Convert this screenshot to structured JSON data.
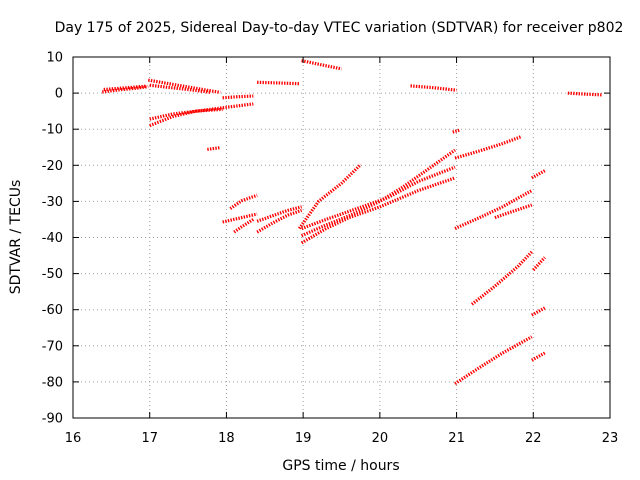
{
  "chart_data": {
    "type": "scatter",
    "title": "Day 175 of 2025, Sidereal Day-to-day VTEC variation (SDTVAR) for receiver p802",
    "xlabel": "GPS time / hours",
    "ylabel": "SDTVAR / TECUs",
    "xlim": [
      16,
      23
    ],
    "ylim": [
      -90,
      10
    ],
    "xticks": [
      "16",
      "17",
      "18",
      "19",
      "20",
      "21",
      "22",
      "23"
    ],
    "yticks": [
      "10",
      "0",
      "-10",
      "-20",
      "-30",
      "-40",
      "-50",
      "-60",
      "-70",
      "-80",
      "-90"
    ],
    "grid": true,
    "marker": "plus",
    "color": "#ff0000",
    "series": [
      {
        "x": [
          16.38,
          16.6,
          16.85,
          16.98
        ],
        "y": [
          0.3,
          0.9,
          1.4,
          1.8
        ]
      },
      {
        "x": [
          16.4,
          16.7,
          16.95
        ],
        "y": [
          1.0,
          1.5,
          1.9
        ]
      },
      {
        "x": [
          16.98,
          17.2,
          17.5,
          17.8,
          17.92
        ],
        "y": [
          3.6,
          2.8,
          1.7,
          0.6,
          0.2
        ]
      },
      {
        "x": [
          17.0,
          17.2,
          17.5,
          17.8
        ],
        "y": [
          2.2,
          1.7,
          1.0,
          0.2
        ]
      },
      {
        "x": [
          17.75,
          17.92
        ],
        "y": [
          -15.6,
          -15.1
        ]
      },
      {
        "x": [
          17.0,
          17.3,
          17.6,
          17.9,
          18.35
        ],
        "y": [
          -9.0,
          -6.5,
          -5.0,
          -4.2,
          -3.0
        ]
      },
      {
        "x": [
          17.0,
          17.3,
          17.6,
          17.95
        ],
        "y": [
          -7.2,
          -5.8,
          -5.0,
          -4.5
        ]
      },
      {
        "x": [
          17.95,
          18.15,
          18.35
        ],
        "y": [
          -1.3,
          -1.0,
          -0.8
        ]
      },
      {
        "x": [
          18.4,
          18.7,
          18.95
        ],
        "y": [
          3.0,
          2.8,
          2.6
        ]
      },
      {
        "x": [
          18.98,
          19.2,
          19.5
        ],
        "y": [
          9.0,
          8.0,
          6.7
        ]
      },
      {
        "x": [
          20.4,
          20.7,
          21.0
        ],
        "y": [
          2.0,
          1.5,
          0.8
        ]
      },
      {
        "x": [
          22.45,
          22.7,
          22.9
        ],
        "y": [
          0.0,
          -0.3,
          -0.5
        ]
      },
      {
        "x": [
          17.95,
          18.2,
          18.4
        ],
        "y": [
          -35.7,
          -34.5,
          -33.5
        ]
      },
      {
        "x": [
          18.05,
          18.2,
          18.4
        ],
        "y": [
          -32.0,
          -29.8,
          -28.3
        ]
      },
      {
        "x": [
          18.1,
          18.2,
          18.35
        ],
        "y": [
          -38.5,
          -37.0,
          -35.0
        ]
      },
      {
        "x": [
          18.4,
          18.6,
          18.8,
          18.98
        ],
        "y": [
          -35.5,
          -34.0,
          -32.5,
          -31.5
        ]
      },
      {
        "x": [
          18.4,
          18.6,
          18.8,
          18.98
        ],
        "y": [
          -38.5,
          -36.0,
          -33.8,
          -32.5
        ]
      },
      {
        "x": [
          18.95,
          19.2,
          19.5,
          19.75
        ],
        "y": [
          -37.5,
          -30.0,
          -25.0,
          -19.8
        ]
      },
      {
        "x": [
          18.98,
          19.3,
          19.6,
          20.0,
          20.5,
          20.98
        ],
        "y": [
          -41.5,
          -37.5,
          -34.5,
          -31.5,
          -27.0,
          -23.5
        ]
      },
      {
        "x": [
          18.98,
          19.3,
          19.7,
          20.1,
          20.5,
          20.98
        ],
        "y": [
          -37.5,
          -35.0,
          -32.0,
          -29.0,
          -24.5,
          -20.5
        ]
      },
      {
        "x": [
          18.98,
          19.3,
          19.6,
          20.0,
          20.3,
          20.6,
          20.98
        ],
        "y": [
          -39.5,
          -36.5,
          -34.0,
          -30.0,
          -26.0,
          -21.5,
          -15.8
        ]
      },
      {
        "x": [
          20.95,
          21.05
        ],
        "y": [
          -10.8,
          -10.2
        ]
      },
      {
        "x": [
          20.98,
          21.3,
          21.6,
          21.85
        ],
        "y": [
          -18.0,
          -16.0,
          -14.0,
          -12.0
        ]
      },
      {
        "x": [
          20.98,
          21.3,
          21.6,
          21.85,
          21.98
        ],
        "y": [
          -37.5,
          -34.5,
          -31.5,
          -28.5,
          -27.0
        ]
      },
      {
        "x": [
          21.5,
          21.7,
          21.98
        ],
        "y": [
          -34.5,
          -33.0,
          -31.0
        ]
      },
      {
        "x": [
          21.98,
          22.15
        ],
        "y": [
          -23.5,
          -21.5
        ]
      },
      {
        "x": [
          21.2,
          21.5,
          21.8,
          21.98
        ],
        "y": [
          -58.5,
          -53.5,
          -48.0,
          -44.0
        ]
      },
      {
        "x": [
          22.0,
          22.15
        ],
        "y": [
          -49.0,
          -45.5
        ]
      },
      {
        "x": [
          21.98,
          22.15
        ],
        "y": [
          -61.5,
          -59.5
        ]
      },
      {
        "x": [
          20.98,
          21.3,
          21.6,
          21.98
        ],
        "y": [
          -80.5,
          -76.0,
          -72.0,
          -67.5
        ]
      },
      {
        "x": [
          21.98,
          22.15
        ],
        "y": [
          -74.0,
          -72.0
        ]
      }
    ]
  }
}
